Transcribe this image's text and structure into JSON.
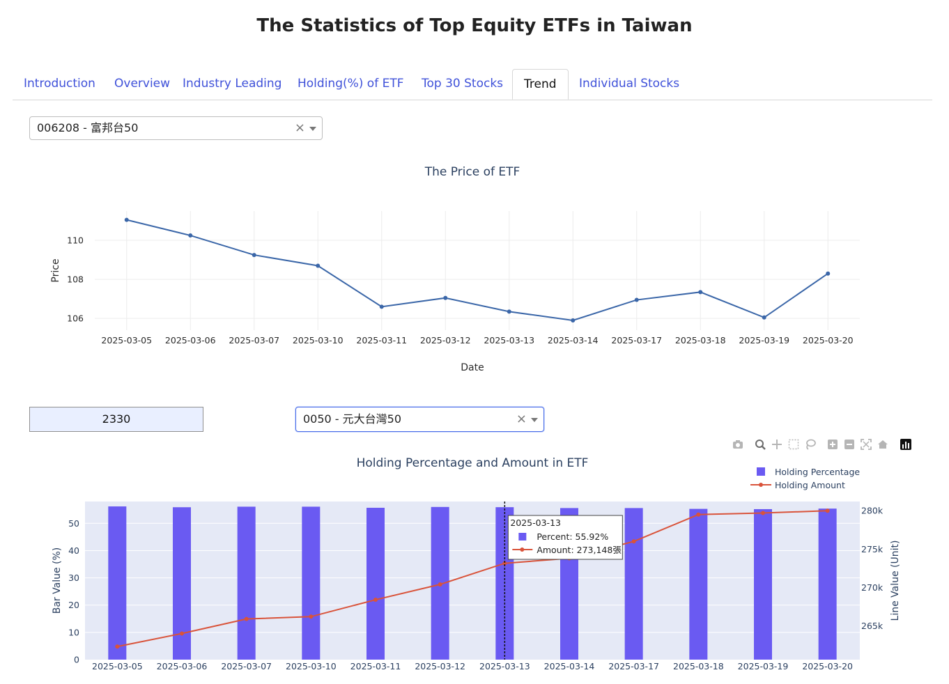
{
  "page": {
    "title": "The Statistics of Top Equity ETFs in Taiwan"
  },
  "tabs": [
    {
      "label": "Introduction",
      "active": false
    },
    {
      "label": "Overview",
      "active": false
    },
    {
      "label": "Industry Leading",
      "active": false
    },
    {
      "label": "Holding(%) of ETF",
      "active": false
    },
    {
      "label": "Top 30 Stocks",
      "active": false
    },
    {
      "label": "Trend",
      "active": true
    },
    {
      "label": "Individual Stocks",
      "active": false
    }
  ],
  "etf_select": {
    "value": "006208 - 富邦台50",
    "clear": "×"
  },
  "stock_input": {
    "value": "2330"
  },
  "etf_select2": {
    "value": "0050 - 元大台灣50",
    "clear": "×"
  },
  "modebar": {
    "icons": [
      "camera-icon",
      "zoom-icon",
      "pan-icon",
      "box-select-icon",
      "lasso-icon",
      "zoom-in-icon",
      "zoom-out-icon",
      "autoscale-icon",
      "reset-icon",
      "plotly-logo-icon"
    ]
  },
  "colors": {
    "price_line": "#3a66a8",
    "bar": "#6a5af2",
    "amount_line": "#d9533a",
    "plot_bg2": "#e5e9f6",
    "tab_link": "#3f51d9"
  },
  "chart_data": [
    {
      "type": "line",
      "title": "The Price of ETF",
      "xlabel": "Date",
      "ylabel": "Price",
      "x": [
        "2025-03-05",
        "2025-03-06",
        "2025-03-07",
        "2025-03-10",
        "2025-03-11",
        "2025-03-12",
        "2025-03-13",
        "2025-03-14",
        "2025-03-17",
        "2025-03-18",
        "2025-03-19",
        "2025-03-20"
      ],
      "y": [
        111.05,
        110.25,
        109.25,
        108.7,
        106.6,
        107.05,
        106.35,
        105.9,
        106.95,
        107.35,
        106.05,
        108.3
      ],
      "yticks": [
        106,
        108,
        110
      ],
      "ylim": [
        105.4,
        111.5
      ],
      "grid": true
    },
    {
      "type": "bar",
      "title": "Holding Percentage and Amount in ETF",
      "ylabel": "Bar Value (%)",
      "ylabel2": "Line Value (Unit)",
      "categories": [
        "2025-03-05",
        "2025-03-06",
        "2025-03-07",
        "2025-03-10",
        "2025-03-11",
        "2025-03-12",
        "2025-03-13",
        "2025-03-14",
        "2025-03-17",
        "2025-03-18",
        "2025-03-19",
        "2025-03-20"
      ],
      "series": [
        {
          "name": "Holding Percentage",
          "axis": "y",
          "type": "bar",
          "values": [
            56.2,
            55.9,
            56.1,
            56.1,
            55.7,
            56.0,
            55.92,
            55.6,
            55.6,
            55.3,
            55.2,
            55.4
          ]
        },
        {
          "name": "Holding Amount",
          "axis": "y2",
          "type": "line",
          "values": [
            262300,
            264000,
            265900,
            266200,
            268400,
            270400,
            273148,
            273800,
            276000,
            279500,
            279700,
            280000
          ]
        }
      ],
      "yticks": [
        0,
        10,
        20,
        30,
        40,
        50
      ],
      "ylim": [
        0,
        58
      ],
      "y2ticks": [
        265000,
        270000,
        275000,
        280000
      ],
      "y2ticklabels": [
        "265k",
        "270k",
        "275k",
        "280k"
      ],
      "y2lim": [
        260600,
        281200
      ],
      "legend": "top-right",
      "hover": {
        "date": "2025-03-13",
        "percent_text": "Percent: 55.92%",
        "amount_text": "Amount: 273,148張"
      }
    }
  ]
}
